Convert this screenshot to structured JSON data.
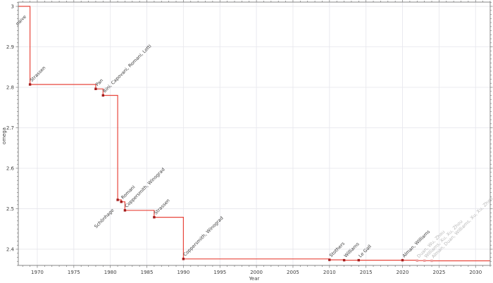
{
  "chart_data": {
    "type": "line",
    "subtype": "step-post",
    "title": "",
    "xlabel": "Year",
    "ylabel": "omega",
    "xlim": [
      1967.4,
      2032.0
    ],
    "ylim": [
      2.36,
      3.0105
    ],
    "grid": true,
    "legend": "none",
    "x_major_ticks": [
      1970,
      1975,
      1980,
      1985,
      1990,
      1995,
      2000,
      2005,
      2010,
      2015,
      2020,
      2025,
      2030
    ],
    "x_minor_step": 1,
    "y_major_ticks": [
      {
        "value": 3.0,
        "label": "3"
      },
      {
        "value": 2.9,
        "label": "2.9"
      },
      {
        "value": 2.8,
        "label": "2.8"
      },
      {
        "value": 2.7,
        "label": "2.7"
      },
      {
        "value": 2.6,
        "label": "2.6"
      },
      {
        "value": 2.5,
        "label": "2.5"
      },
      {
        "value": 2.4,
        "label": "2.4"
      }
    ],
    "y_minor_step": 0.01,
    "events": [
      {
        "label": "naive",
        "year": 1969,
        "omega": 3.0,
        "placement": "below",
        "marker": false,
        "faded": false
      },
      {
        "label": "Strassen",
        "year": 1969,
        "omega": 2.807,
        "placement": "above",
        "marker": true,
        "faded": false
      },
      {
        "label": "Pan",
        "year": 1978,
        "omega": 2.796,
        "placement": "above",
        "marker": true,
        "faded": false
      },
      {
        "label": "Bini, Capovani, Romani, Lotti",
        "year": 1979,
        "omega": 2.78,
        "placement": "above",
        "marker": true,
        "faded": false
      },
      {
        "label": "Schönhage",
        "year": 1981,
        "omega": 2.522,
        "placement": "below",
        "marker": true,
        "faded": false
      },
      {
        "label": "Romani",
        "year": 1981.5,
        "omega": 2.517,
        "placement": "above",
        "marker": true,
        "faded": false
      },
      {
        "label": "Coppersmith, Winograd",
        "year": 1982,
        "omega": 2.496,
        "placement": "above",
        "marker": true,
        "faded": false
      },
      {
        "label": "Strassen",
        "year": 1986,
        "omega": 2.479,
        "placement": "above",
        "marker": true,
        "faded": false
      },
      {
        "label": "Coppersmith, Winograd",
        "year": 1990,
        "omega": 2.376,
        "placement": "above",
        "marker": true,
        "faded": false
      },
      {
        "label": "Stothers",
        "year": 2010,
        "omega": 2.3737,
        "placement": "above",
        "marker": true,
        "faded": false
      },
      {
        "label": "Williams",
        "year": 2012,
        "omega": 2.3729,
        "placement": "above",
        "marker": true,
        "faded": false
      },
      {
        "label": "Le Gall",
        "year": 2014,
        "omega": 2.3729,
        "placement": "above",
        "marker": true,
        "faded": false
      },
      {
        "label": "Alman, Williams",
        "year": 2020,
        "omega": 2.3729,
        "placement": "above",
        "marker": true,
        "faded": false
      },
      {
        "label": "Duan, Wu, Zhou",
        "year": 2022,
        "omega": 2.3719,
        "placement": "above",
        "marker": true,
        "faded": true
      },
      {
        "label": "Williams, Xu, Xu, Zhou",
        "year": 2023,
        "omega": 2.3716,
        "placement": "above",
        "marker": true,
        "faded": true
      },
      {
        "label": "Alman, Duan, Williams, Xu, Xu, Zhou",
        "year": 2024,
        "omega": 2.3713,
        "placement": "above",
        "marker": true,
        "faded": true
      }
    ],
    "colors": {
      "line": "#e8463c",
      "marker": "#a31d1d",
      "marker_faded": "#e9a0a0",
      "label": "#3d3d3d",
      "label_faded": "#b9b9b9",
      "grid": "#e8e8ee",
      "spine": "#7a7a7a",
      "tick": "#7a7a7a",
      "tick_label": "#404040",
      "background": "#ffffff"
    }
  }
}
